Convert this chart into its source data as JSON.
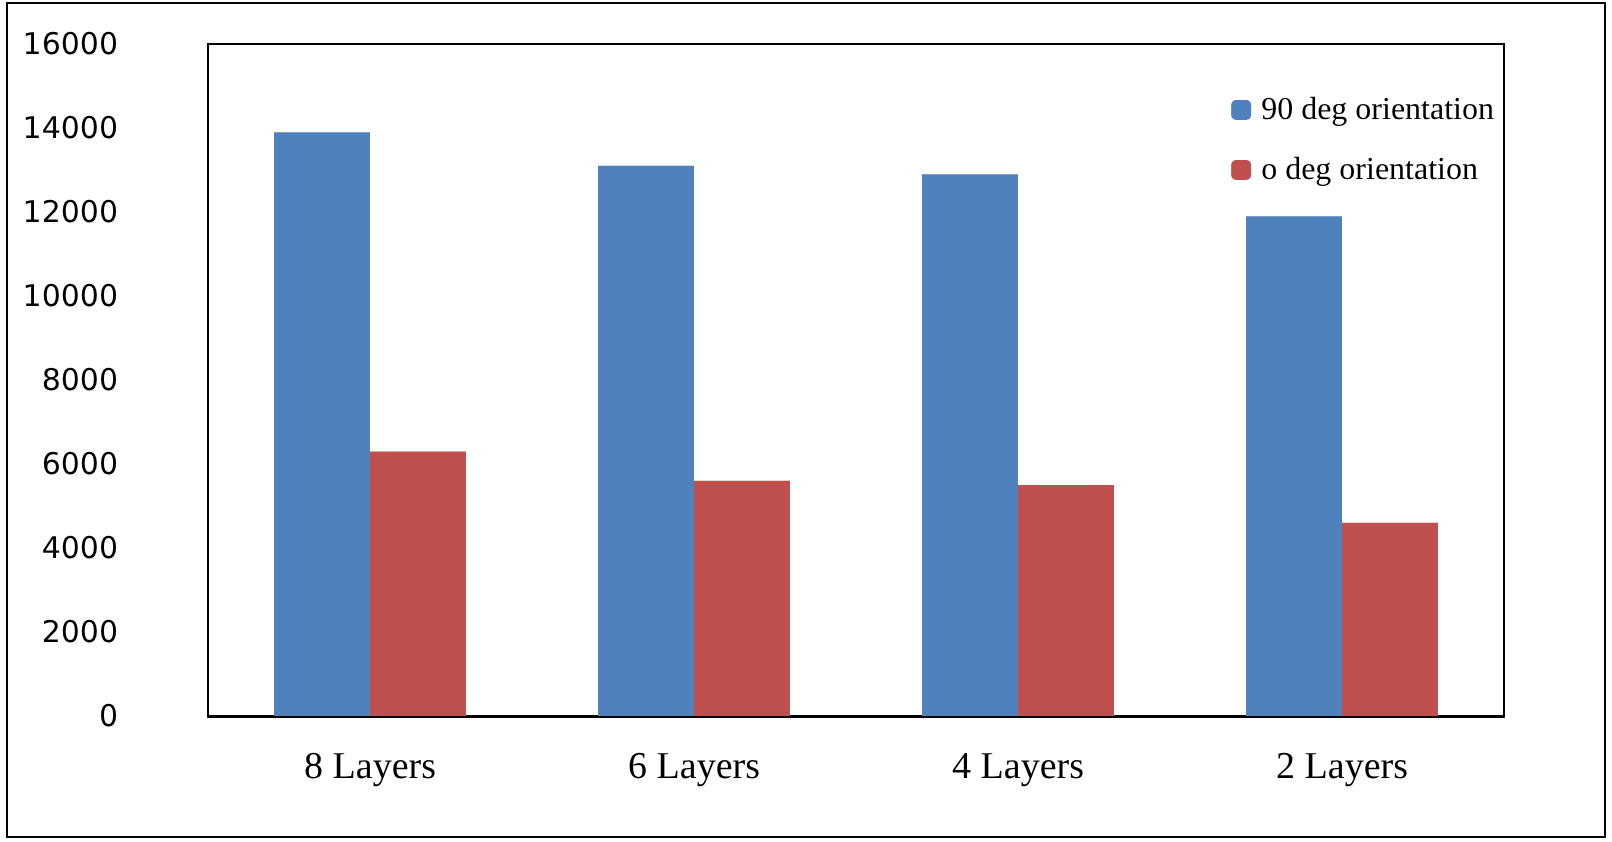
{
  "chart_data": {
    "type": "bar",
    "categories": [
      "8 Layers",
      "6 Layers",
      "4 Layers",
      "2 Layers"
    ],
    "series": [
      {
        "name": "90 deg orientation",
        "color": "#4f81bd",
        "values": [
          13900,
          13100,
          12900,
          11900
        ]
      },
      {
        "name": "o deg orientation",
        "color": "#c0504d",
        "values": [
          6300,
          5600,
          5500,
          4600
        ]
      }
    ],
    "ylim": [
      0,
      16000
    ],
    "yticks": [
      0,
      2000,
      4000,
      6000,
      8000,
      10000,
      12000,
      14000,
      16000
    ],
    "grid": false,
    "legend": "top right"
  }
}
